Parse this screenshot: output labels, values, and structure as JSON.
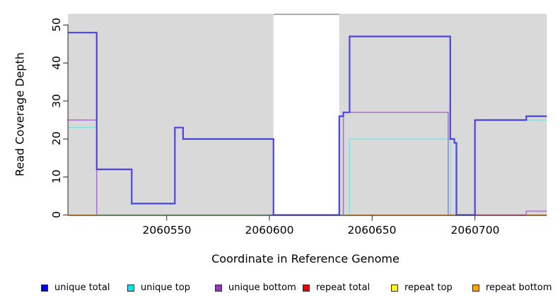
{
  "chart_data": {
    "type": "line",
    "subtype": "step-coverage",
    "title": "",
    "xlabel": "Coordinate in Reference Genome",
    "ylabel": "Read Coverage Depth",
    "xlim": [
      2060502,
      2060735
    ],
    "ylim": [
      0,
      53
    ],
    "grid": false,
    "legend_position": "bottom",
    "panel_background": "#d9d9d9",
    "masked_region": {
      "x_start": 2060602,
      "x_end": 2060634,
      "top_value": 53,
      "fill": "#ffffff",
      "top_line_color": "#999999"
    },
    "axes": {
      "x": {
        "label": "Coordinate in Reference Genome",
        "ticks": [
          2060550,
          2060600,
          2060650,
          2060700
        ],
        "tick_labels": [
          "2060550",
          "2060600",
          "2060650",
          "2060700"
        ]
      },
      "y": {
        "label": "Read Coverage Depth",
        "ticks": [
          0,
          10,
          20,
          30,
          40,
          50
        ],
        "tick_labels": [
          "0",
          "10",
          "20",
          "30",
          "40",
          "50"
        ]
      }
    },
    "series": [
      {
        "name": "unique top",
        "line_color": "#7fe3e3",
        "width": 1.4,
        "segments": [
          {
            "steps": [
              [
                2060502,
                23
              ],
              [
                2060516,
                0
              ],
              [
                2060639,
                20
              ],
              [
                2060688,
                0
              ],
              [
                2060700,
                25
              ]
            ],
            "end": 2060735
          }
        ]
      },
      {
        "name": "unique bottom",
        "line_color": "#a968d9",
        "width": 1.4,
        "segments": [
          {
            "steps": [
              [
                2060502,
                25
              ],
              [
                2060516,
                0
              ],
              [
                2060636,
                27
              ],
              [
                2060687,
                0
              ],
              [
                2060725,
                1
              ]
            ],
            "end": 2060735
          }
        ]
      },
      {
        "name": "repeat total",
        "line_color": "#c75577",
        "width": 1.3,
        "segments": [
          {
            "steps": [
              [
                2060700,
                0
              ]
            ],
            "end": 2060725
          }
        ]
      },
      {
        "name": "repeat top",
        "line_color": "#90cd90",
        "width": 1.3,
        "segments": [
          {
            "steps": [
              [
                2060516,
                0
              ]
            ],
            "end": 2060600
          },
          {
            "steps": [
              [
                2060634,
                0
              ]
            ],
            "end": 2060637
          }
        ]
      },
      {
        "name": "repeat bottom",
        "line_color": "#ff9e2a",
        "width": 1.6,
        "segments": [
          {
            "steps": [
              [
                2060502,
                0
              ]
            ],
            "end": 2060516
          },
          {
            "steps": [
              [
                2060637,
                0
              ]
            ],
            "end": 2060691
          },
          {
            "steps": [
              [
                2060725,
                0
              ]
            ],
            "end": 2060735
          }
        ]
      },
      {
        "name": "unique total",
        "line_color": "#4b44e0",
        "width": 2.2,
        "segments": [
          {
            "steps": [
              [
                2060502,
                48
              ],
              [
                2060516,
                12
              ],
              [
                2060533,
                3
              ],
              [
                2060554,
                23
              ],
              [
                2060558,
                20
              ],
              [
                2060602,
                0
              ],
              [
                2060634,
                26
              ],
              [
                2060636,
                27
              ],
              [
                2060639,
                47
              ],
              [
                2060688,
                20
              ],
              [
                2060690,
                19
              ],
              [
                2060691,
                0
              ],
              [
                2060700,
                25
              ],
              [
                2060725,
                26
              ]
            ],
            "end": 2060735
          }
        ]
      }
    ],
    "legend": [
      {
        "label": "unique total",
        "color": "#0000ee"
      },
      {
        "label": "unique top",
        "color": "#00e5ee"
      },
      {
        "label": "unique bottom",
        "color": "#9932cc"
      },
      {
        "label": "repeat total",
        "color": "#ee0000"
      },
      {
        "label": "repeat top",
        "color": "#ffff00"
      },
      {
        "label": "repeat bottom",
        "color": "#ffa500"
      }
    ]
  }
}
